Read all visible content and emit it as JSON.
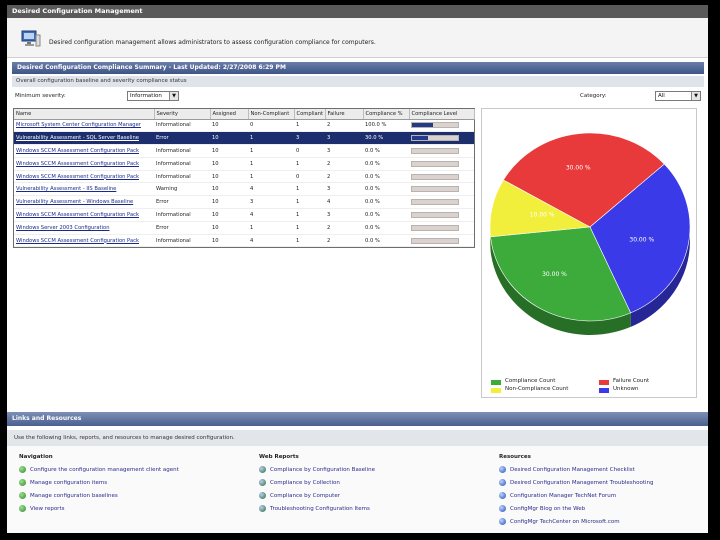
{
  "window": {
    "title": "Desired Configuration Management"
  },
  "header": {
    "description": "Desired configuration management allows administrators to assess configuration compliance for computers."
  },
  "summary": {
    "title": "Desired Configuration Compliance Summary - Last Updated: 2/27/2008 6:29 PM",
    "subtitle": "Overall configuration baseline and severity compliance status",
    "min_severity_label": "Minimum severity:",
    "min_severity_value": "Information",
    "category_label": "Category:",
    "category_value": "All"
  },
  "grid": {
    "columns": [
      "Name",
      "Severity",
      "Assigned",
      "Non-Compliant",
      "Compliant",
      "Failure",
      "Compliance %",
      "Compliance Level"
    ],
    "rows": [
      {
        "name": "Microsoft System Center Configuration Manager",
        "severity": "Informational",
        "assigned": "10",
        "noncompliant": "0",
        "compliant": "1",
        "failure": "2",
        "percent": "100.0 %",
        "level": 0.45
      },
      {
        "name": "Vulnerability Assessment - SQL Server Baseline",
        "severity": "Error",
        "assigned": "10",
        "noncompliant": "1",
        "compliant": "3",
        "failure": "3",
        "percent": "30.0 %",
        "level": 0.35
      },
      {
        "name": "Windows SCCM Assessment Configuration Pack",
        "severity": "Informational",
        "assigned": "10",
        "noncompliant": "1",
        "compliant": "0",
        "failure": "3",
        "percent": "0.0 %",
        "level": 0.0
      },
      {
        "name": "Windows SCCM Assessment Configuration Pack",
        "severity": "Informational",
        "assigned": "10",
        "noncompliant": "1",
        "compliant": "1",
        "failure": "2",
        "percent": "0.0 %",
        "level": 0.0
      },
      {
        "name": "Windows SCCM Assessment Configuration Pack",
        "severity": "Informational",
        "assigned": "10",
        "noncompliant": "1",
        "compliant": "0",
        "failure": "2",
        "percent": "0.0 %",
        "level": 0.0
      },
      {
        "name": "Vulnerability Assessment - IIS Baseline",
        "severity": "Warning",
        "assigned": "10",
        "noncompliant": "4",
        "compliant": "1",
        "failure": "3",
        "percent": "0.0 %",
        "level": 0.0
      },
      {
        "name": "Vulnerability Assessment - Windows Baseline",
        "severity": "Error",
        "assigned": "10",
        "noncompliant": "3",
        "compliant": "1",
        "failure": "4",
        "percent": "0.0 %",
        "level": 0.0
      },
      {
        "name": "Windows SCCM Assessment Configuration Pack",
        "severity": "Informational",
        "assigned": "10",
        "noncompliant": "4",
        "compliant": "1",
        "failure": "3",
        "percent": "0.0 %",
        "level": 0.0
      },
      {
        "name": "Windows Server 2003 Configuration",
        "severity": "Error",
        "assigned": "10",
        "noncompliant": "1",
        "compliant": "1",
        "failure": "2",
        "percent": "0.0 %",
        "level": 0.0
      },
      {
        "name": "Windows SCCM Assessment Configuration Pack",
        "severity": "Informational",
        "assigned": "10",
        "noncompliant": "4",
        "compliant": "1",
        "failure": "2",
        "percent": "0.0 %",
        "level": 0.0
      }
    ]
  },
  "chart_data": {
    "type": "pie",
    "title": "",
    "slices": [
      {
        "label": "Failure Count",
        "value": 30,
        "display": "30.00 %",
        "color": "#e83a3a"
      },
      {
        "label": "Unknown",
        "value": 30,
        "display": "30.00 %",
        "color": "#3a3ae8"
      },
      {
        "label": "Compliance Count",
        "value": 30,
        "display": "30.00 %",
        "color": "#3cab3c"
      },
      {
        "label": "Non-Compliance Count",
        "value": 10,
        "display": "10.00 %",
        "color": "#f2ee3c"
      }
    ]
  },
  "links": {
    "title": "Links and Resources",
    "subtitle": "Use the following links, reports, and resources to manage desired configuration.",
    "navigation": {
      "title": "Navigation",
      "items": [
        "Configure the configuration management client agent",
        "Manage configuration items",
        "Manage configuration baselines",
        "View reports"
      ]
    },
    "web_reports": {
      "title": "Web Reports",
      "items": [
        "Compliance by Configuration Baseline",
        "Compliance by Collection",
        "Compliance by Computer",
        "Troubleshooting Configuration Items"
      ]
    },
    "resources": {
      "title": "Resources",
      "items": [
        "Desired Configuration Management Checklist",
        "Desired Configuration Management Troubleshooting",
        "Configuration Manager TechNet Forum",
        "ConfigMgr Blog on the Web",
        "ConfigMgr TechCenter on Microsoft.com"
      ]
    }
  }
}
